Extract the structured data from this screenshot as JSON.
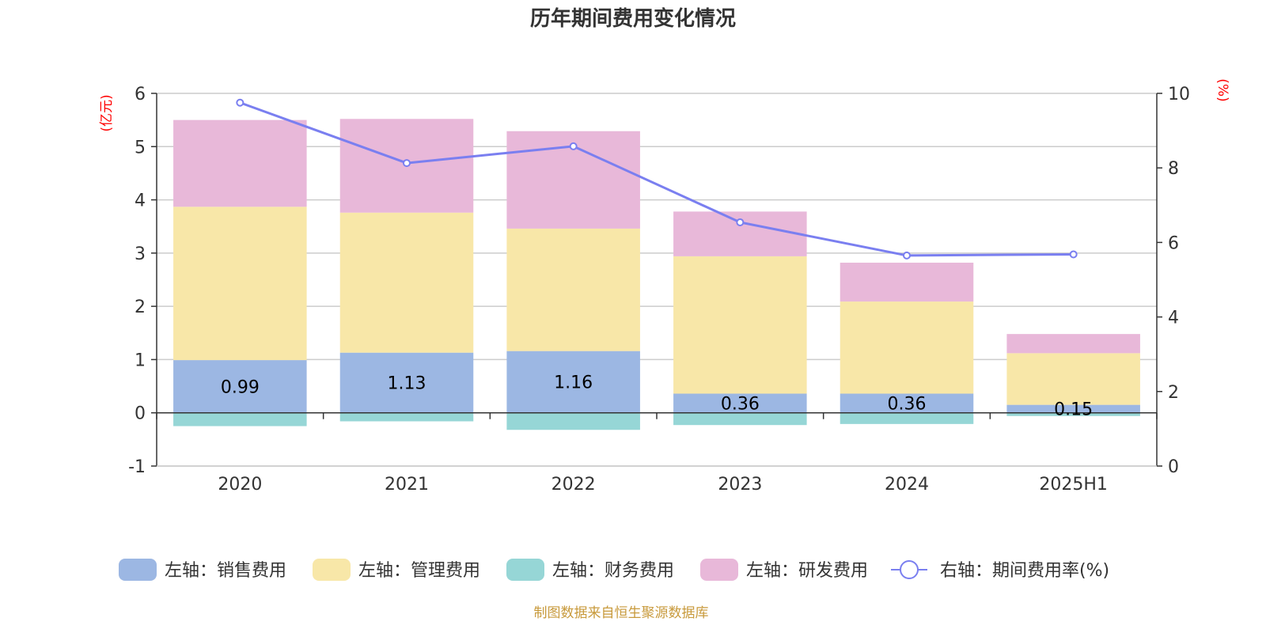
{
  "chart_data": {
    "type": "bar",
    "title": "历年期间费用变化情况",
    "categories": [
      "2020",
      "2021",
      "2022",
      "2023",
      "2024",
      "2025H1"
    ],
    "left_axis": {
      "unit": "(亿元)",
      "ylim": [
        -1,
        6
      ],
      "ticks": [
        -1,
        0,
        1,
        2,
        3,
        4,
        5,
        6
      ]
    },
    "right_axis": {
      "unit": "(%)",
      "ylim": [
        0,
        10
      ],
      "ticks": [
        0,
        2,
        4,
        6,
        8,
        10
      ]
    },
    "stack_order": [
      "销售费用",
      "管理费用",
      "研发费用"
    ],
    "series": [
      {
        "name": "左轴：销售费用",
        "key": "销售费用",
        "axis": "left",
        "kind": "bar",
        "color": "#9cb7e3",
        "values": [
          0.99,
          1.13,
          1.16,
          0.36,
          0.36,
          0.15
        ],
        "labels": [
          "0.99",
          "1.13",
          "1.16",
          "0.36",
          "0.36",
          "0.15"
        ]
      },
      {
        "name": "左轴：管理费用",
        "key": "管理费用",
        "axis": "left",
        "kind": "bar",
        "color": "#f8e7a8",
        "values": [
          2.88,
          2.63,
          2.3,
          2.58,
          1.73,
          0.97
        ]
      },
      {
        "name": "左轴：财务费用",
        "key": "财务费用",
        "axis": "left",
        "kind": "bar",
        "color": "#96d6d6",
        "values": [
          -0.25,
          -0.16,
          -0.32,
          -0.23,
          -0.21,
          -0.06
        ]
      },
      {
        "name": "左轴：研发费用",
        "key": "研发费用",
        "axis": "left",
        "kind": "bar",
        "color": "#e8b8d9",
        "values": [
          1.63,
          1.76,
          1.83,
          0.84,
          0.73,
          0.36
        ]
      },
      {
        "name": "右轴：期间费用率(%)",
        "key": "期间费用率",
        "axis": "right",
        "kind": "line",
        "color": "#7a7ff0",
        "values": [
          9.75,
          8.13,
          8.58,
          6.54,
          5.65,
          5.68
        ]
      }
    ],
    "grid": true,
    "legend_position": "bottom"
  },
  "footer": {
    "source": "制图数据来自恒生聚源数据库"
  }
}
